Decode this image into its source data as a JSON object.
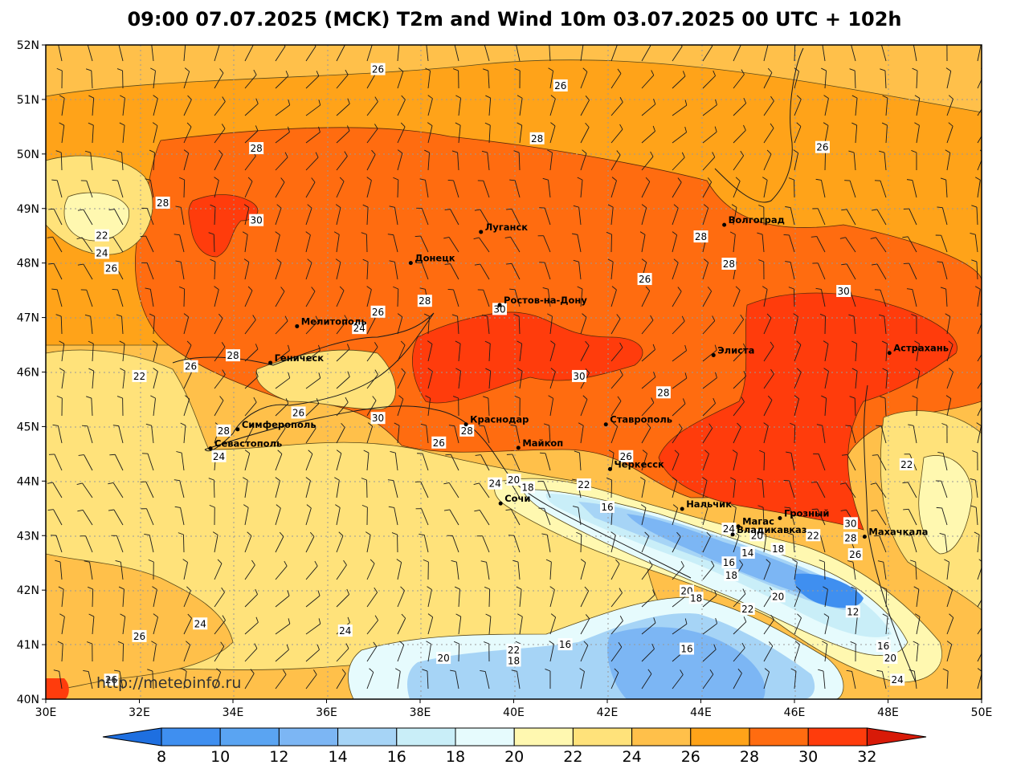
{
  "title": "09:00 07.07.2025 (MCK) T2m and Wind 10m 03.07.2025 00 UTC + 102h",
  "watermark": "http://meteoinfo.ru",
  "lat_ticks": [
    "52N",
    "51N",
    "50N",
    "49N",
    "48N",
    "47N",
    "46N",
    "45N",
    "44N",
    "43N",
    "42N",
    "41N",
    "40N"
  ],
  "lon_ticks": [
    "30E",
    "32E",
    "34E",
    "36E",
    "38E",
    "40E",
    "42E",
    "44E",
    "46E",
    "48E",
    "50E"
  ],
  "colorbar": {
    "ticks": [
      "8",
      "10",
      "12",
      "14",
      "16",
      "18",
      "20",
      "22",
      "24",
      "26",
      "28",
      "30",
      "32"
    ],
    "colors": [
      "#1e6fe0",
      "#3f8ff0",
      "#5aa4f2",
      "#7cb6f4",
      "#a6d4f6",
      "#c9eef8",
      "#e6fbfd",
      "#fff8b0",
      "#ffe27a",
      "#ffc04a",
      "#ffa319",
      "#ff6c10",
      "#ff3c0c",
      "#d81a08"
    ]
  },
  "cities": [
    {
      "name": "Волгоград",
      "lon": 44.5,
      "lat": 48.7
    },
    {
      "name": "Луганск",
      "lon": 39.3,
      "lat": 48.57
    },
    {
      "name": "Донецк",
      "lon": 37.8,
      "lat": 48.0
    },
    {
      "name": "Ростов-на-Дону",
      "lon": 39.7,
      "lat": 47.23
    },
    {
      "name": "Мелитополь",
      "lon": 35.37,
      "lat": 46.84
    },
    {
      "name": "Геническ",
      "lon": 34.8,
      "lat": 46.17
    },
    {
      "name": "Элиста",
      "lon": 44.27,
      "lat": 46.31
    },
    {
      "name": "Астрахань",
      "lon": 48.03,
      "lat": 46.35
    },
    {
      "name": "Симферополь",
      "lon": 34.1,
      "lat": 44.95
    },
    {
      "name": "Севастополь",
      "lon": 33.52,
      "lat": 44.6
    },
    {
      "name": "Краснодар",
      "lon": 38.98,
      "lat": 45.04
    },
    {
      "name": "Ставрополь",
      "lon": 41.97,
      "lat": 45.04
    },
    {
      "name": "Майкоп",
      "lon": 40.1,
      "lat": 44.61
    },
    {
      "name": "Черкесск",
      "lon": 42.06,
      "lat": 44.22
    },
    {
      "name": "Сочи",
      "lon": 39.72,
      "lat": 43.59
    },
    {
      "name": "Нальчик",
      "lon": 43.6,
      "lat": 43.49
    },
    {
      "name": "Магас",
      "lon": 44.8,
      "lat": 43.17
    },
    {
      "name": "Владикавказ",
      "lon": 44.68,
      "lat": 43.02
    },
    {
      "name": "Грозный",
      "lon": 45.69,
      "lat": 43.32
    },
    {
      "name": "Махачкала",
      "lon": 47.5,
      "lat": 42.98
    }
  ],
  "contour_labels": [
    {
      "text": "26",
      "lon": 37.1,
      "lat": 51.55
    },
    {
      "text": "26",
      "lon": 41.0,
      "lat": 51.25
    },
    {
      "text": "28",
      "lon": 34.5,
      "lat": 50.1
    },
    {
      "text": "28",
      "lon": 40.5,
      "lat": 50.28
    },
    {
      "text": "26",
      "lon": 46.6,
      "lat": 50.12
    },
    {
      "text": "28",
      "lon": 32.5,
      "lat": 49.1
    },
    {
      "text": "30",
      "lon": 34.5,
      "lat": 48.78
    },
    {
      "text": "22",
      "lon": 31.2,
      "lat": 48.5
    },
    {
      "text": "24",
      "lon": 31.2,
      "lat": 48.18
    },
    {
      "text": "26",
      "lon": 31.4,
      "lat": 47.9
    },
    {
      "text": "28",
      "lon": 44.0,
      "lat": 48.48
    },
    {
      "text": "28",
      "lon": 44.6,
      "lat": 47.98
    },
    {
      "text": "26",
      "lon": 42.8,
      "lat": 47.7
    },
    {
      "text": "30",
      "lon": 47.05,
      "lat": 47.48
    },
    {
      "text": "26",
      "lon": 37.1,
      "lat": 47.1
    },
    {
      "text": "28",
      "lon": 38.1,
      "lat": 47.3
    },
    {
      "text": "30",
      "lon": 39.7,
      "lat": 47.15
    },
    {
      "text": "24",
      "lon": 36.7,
      "lat": 46.8
    },
    {
      "text": "28",
      "lon": 34.0,
      "lat": 46.3
    },
    {
      "text": "26",
      "lon": 33.1,
      "lat": 46.1
    },
    {
      "text": "22",
      "lon": 32.0,
      "lat": 45.92
    },
    {
      "text": "30",
      "lon": 41.4,
      "lat": 45.92
    },
    {
      "text": "28",
      "lon": 43.2,
      "lat": 45.62
    },
    {
      "text": "26",
      "lon": 35.4,
      "lat": 45.25
    },
    {
      "text": "28",
      "lon": 33.8,
      "lat": 44.92
    },
    {
      "text": "30",
      "lon": 37.1,
      "lat": 45.15
    },
    {
      "text": "28",
      "lon": 39.0,
      "lat": 44.92
    },
    {
      "text": "26",
      "lon": 38.4,
      "lat": 44.7
    },
    {
      "text": "24",
      "lon": 33.7,
      "lat": 44.45
    },
    {
      "text": "26",
      "lon": 42.4,
      "lat": 44.45
    },
    {
      "text": "22",
      "lon": 48.4,
      "lat": 44.3
    },
    {
      "text": "20",
      "lon": 40.0,
      "lat": 44.02
    },
    {
      "text": "18",
      "lon": 40.3,
      "lat": 43.88
    },
    {
      "text": "22",
      "lon": 41.5,
      "lat": 43.93
    },
    {
      "text": "24",
      "lon": 39.6,
      "lat": 43.95
    },
    {
      "text": "16",
      "lon": 42.0,
      "lat": 43.52
    },
    {
      "text": "24",
      "lon": 44.6,
      "lat": 43.12
    },
    {
      "text": "20",
      "lon": 45.2,
      "lat": 43.0
    },
    {
      "text": "22",
      "lon": 46.4,
      "lat": 43.0
    },
    {
      "text": "30",
      "lon": 47.2,
      "lat": 43.22
    },
    {
      "text": "28",
      "lon": 47.2,
      "lat": 42.95
    },
    {
      "text": "18",
      "lon": 45.65,
      "lat": 42.75
    },
    {
      "text": "14",
      "lon": 45.0,
      "lat": 42.68
    },
    {
      "text": "26",
      "lon": 47.3,
      "lat": 42.65
    },
    {
      "text": "16",
      "lon": 44.6,
      "lat": 42.5
    },
    {
      "text": "18",
      "lon": 44.65,
      "lat": 42.27
    },
    {
      "text": "20",
      "lon": 43.7,
      "lat": 41.98
    },
    {
      "text": "18",
      "lon": 43.9,
      "lat": 41.85
    },
    {
      "text": "20",
      "lon": 45.65,
      "lat": 41.88
    },
    {
      "text": "22",
      "lon": 45.0,
      "lat": 41.65
    },
    {
      "text": "12",
      "lon": 47.25,
      "lat": 41.6
    },
    {
      "text": "24",
      "lon": 33.3,
      "lat": 41.38
    },
    {
      "text": "24",
      "lon": 36.4,
      "lat": 41.25
    },
    {
      "text": "26",
      "lon": 32.0,
      "lat": 41.15
    },
    {
      "text": "16",
      "lon": 41.1,
      "lat": 41.0
    },
    {
      "text": "22",
      "lon": 40.0,
      "lat": 40.9
    },
    {
      "text": "16",
      "lon": 43.7,
      "lat": 40.92
    },
    {
      "text": "16",
      "lon": 47.9,
      "lat": 40.97
    },
    {
      "text": "18",
      "lon": 40.0,
      "lat": 40.7
    },
    {
      "text": "20",
      "lon": 38.5,
      "lat": 40.75
    },
    {
      "text": "20",
      "lon": 48.05,
      "lat": 40.75
    },
    {
      "text": "26",
      "lon": 31.4,
      "lat": 40.35
    },
    {
      "text": "24",
      "lon": 48.2,
      "lat": 40.35
    }
  ]
}
